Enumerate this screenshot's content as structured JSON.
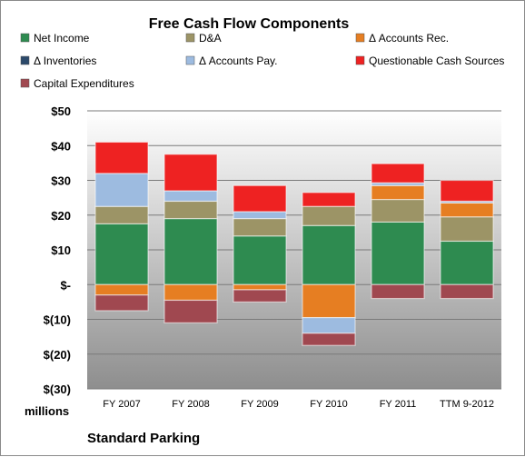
{
  "chart_data": {
    "type": "bar",
    "stacked": true,
    "title": "Free Cash Flow Components",
    "ylabel": "millions",
    "source_label": "Standard Parking",
    "ylim": [
      -30,
      50
    ],
    "yticks": [
      50,
      40,
      30,
      20,
      10,
      0,
      -10,
      -20,
      -30
    ],
    "ytick_labels": [
      "$50",
      "$40",
      "$30",
      "$20",
      "$10",
      "$-",
      "$(10)",
      "$(20)",
      "$(30)"
    ],
    "categories": [
      "FY 2007",
      "FY 2008",
      "FY 2009",
      "FY 2010",
      "FY 2011",
      "TTM 9-2012"
    ],
    "grid": true,
    "legend_position": "top",
    "series": [
      {
        "name": "Net Income",
        "color": "#2e8b50",
        "values": [
          17.5,
          19,
          14,
          17,
          18,
          12.5
        ]
      },
      {
        "name": "D&A",
        "color": "#9c9466",
        "values": [
          5,
          5,
          5,
          5.5,
          6.5,
          7
        ]
      },
      {
        "name": "Δ Accounts Rec.",
        "color": "#e67e22",
        "values": [
          -3,
          -4.5,
          -1.5,
          -9.5,
          4,
          4
        ]
      },
      {
        "name": "Δ Inventories",
        "color": "#2c4a6b",
        "values": [
          0,
          0,
          0,
          0,
          0,
          0
        ]
      },
      {
        "name": "Δ Accounts Pay.",
        "color": "#9dbbe0",
        "values": [
          9.5,
          3,
          2,
          -4.5,
          0.8,
          0.5
        ]
      },
      {
        "name": "Questionable Cash Sources",
        "color": "#ee2222",
        "values": [
          9,
          10.5,
          7.5,
          4,
          5.5,
          6
        ]
      },
      {
        "name": "Capital Expenditures",
        "color": "#a04850",
        "values": [
          -4.5,
          -6.5,
          -3.5,
          -3.5,
          -4,
          -4
        ]
      }
    ]
  }
}
